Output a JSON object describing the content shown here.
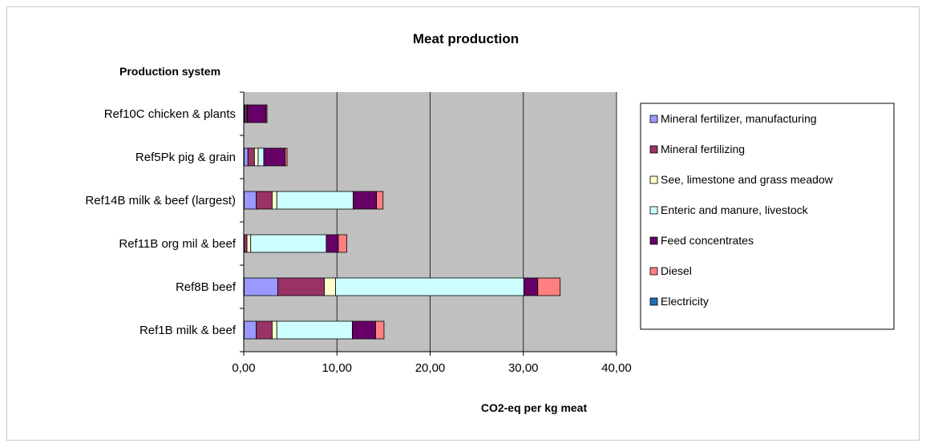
{
  "chart_data": {
    "type": "bar",
    "orientation": "horizontal",
    "stacked": true,
    "title": "Meat production",
    "ylabel": "Production system",
    "xlabel": "CO2-eq per kg meat",
    "xlim": [
      0,
      40
    ],
    "xticks": [
      "0,00",
      "10,00",
      "20,00",
      "30,00",
      "40,00"
    ],
    "xtick_values": [
      0,
      10,
      20,
      30,
      40
    ],
    "grid": "vertical major gridlines",
    "plot_background": "#c0c0c0",
    "legend_position": "right",
    "categories": [
      "Ref1B milk & beef",
      "Ref8B beef",
      "Ref11B org mil & beef",
      "Ref14B milk & beef (largest)",
      "Ref5Pk pig & grain",
      "Ref10C chicken & plants"
    ],
    "series": [
      {
        "name": "Electricity",
        "color": "#1f6fb5",
        "values": [
          0.05,
          0.05,
          0.05,
          0.05,
          0.05,
          0.05
        ]
      },
      {
        "name": "Mineral fertilizer, manufacturing",
        "color": "#9999ff",
        "values": [
          1.3,
          3.6,
          0.0,
          1.3,
          0.4,
          0.1
        ]
      },
      {
        "name": "Mineral fertilizing",
        "color": "#993366",
        "values": [
          1.7,
          5.0,
          0.3,
          1.7,
          0.7,
          0.2
        ]
      },
      {
        "name": "See, limestone and grass meadow",
        "color": "#ffffcc",
        "values": [
          0.5,
          1.2,
          0.4,
          0.5,
          0.4,
          0.05
        ]
      },
      {
        "name": "Enteric and manure, livestock",
        "color": "#ccffff",
        "values": [
          8.1,
          20.2,
          8.1,
          8.2,
          0.6,
          0.0
        ]
      },
      {
        "name": "Feed concentrates",
        "color": "#660066",
        "values": [
          2.5,
          1.5,
          1.3,
          2.5,
          2.3,
          2.0
        ]
      },
      {
        "name": "Diesel",
        "color": "#ff8080",
        "values": [
          0.9,
          2.4,
          0.9,
          0.7,
          0.2,
          0.1
        ]
      }
    ],
    "legend_order": [
      "Mineral fertilizer, manufacturing",
      "Mineral fertilizing",
      "See, limestone and grass meadow",
      "Enteric and manure, livestock",
      "Feed concentrates",
      "Diesel",
      "Electricity"
    ]
  }
}
